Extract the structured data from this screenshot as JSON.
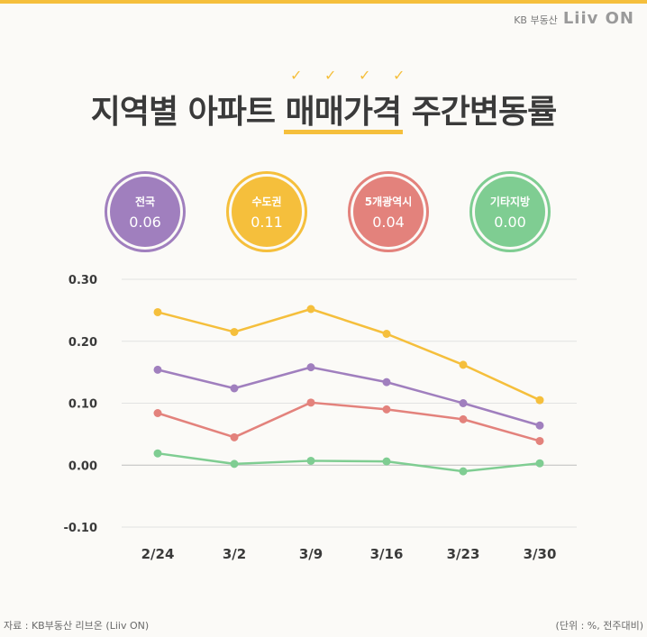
{
  "brand": {
    "kb": "KB 부동산",
    "logo": "Liiv ON"
  },
  "title": {
    "pre": "지역별 아파트 ",
    "highlight": "매매가격",
    "post": " 주간변동률"
  },
  "badges": [
    {
      "label": "전국",
      "value": "0.06",
      "color": "#a07fbe"
    },
    {
      "label": "수도권",
      "value": "0.11",
      "color": "#f5bf3c"
    },
    {
      "label": "5개광역시",
      "value": "0.04",
      "color": "#e3827c"
    },
    {
      "label": "기타지방",
      "value": "0.00",
      "color": "#7fcd92"
    }
  ],
  "chart_data": {
    "type": "line",
    "categories": [
      "2/24",
      "3/2",
      "3/9",
      "3/16",
      "3/23",
      "3/30"
    ],
    "yticks": [
      "0.30",
      "0.20",
      "0.10",
      "0.00",
      "-0.10"
    ],
    "ylim": [
      -0.1,
      0.3
    ],
    "grid": true,
    "series": [
      {
        "name": "수도권",
        "color": "#f5bf3c",
        "values": [
          0.247,
          0.215,
          0.252,
          0.212,
          0.162,
          0.105
        ]
      },
      {
        "name": "전국",
        "color": "#a07fbe",
        "values": [
          0.154,
          0.124,
          0.158,
          0.134,
          0.1,
          0.064
        ]
      },
      {
        "name": "5개광역시",
        "color": "#e3827c",
        "values": [
          0.084,
          0.045,
          0.101,
          0.09,
          0.074,
          0.039
        ]
      },
      {
        "name": "기타지방",
        "color": "#7fcd92",
        "values": [
          0.019,
          0.002,
          0.007,
          0.006,
          -0.01,
          0.003
        ]
      }
    ]
  },
  "footer": {
    "source": "자료 : KB부동산 리브온 (Liiv ON)",
    "unit": "(단위 : %, 전주대비)"
  }
}
